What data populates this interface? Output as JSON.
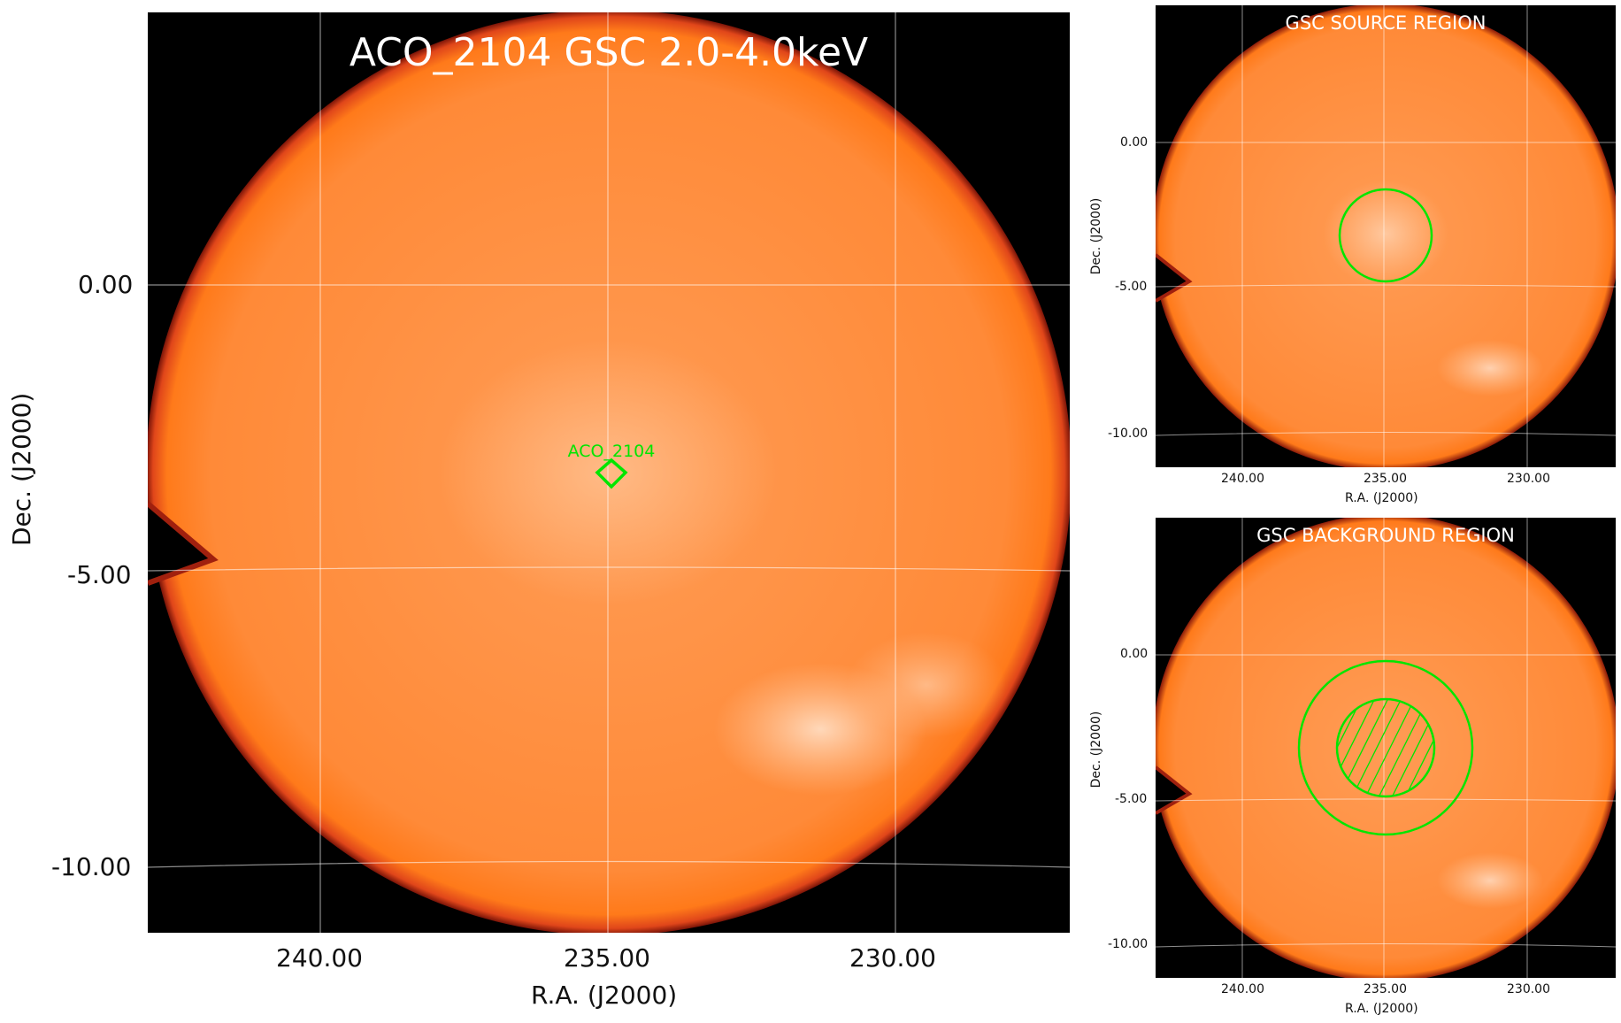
{
  "colors": {
    "background": "#000000",
    "disk_outer": "#ff7a1a",
    "disk_inner": "#ff9a52",
    "edge_glow": "#c4281a",
    "bright_patch": "#ffd1ad",
    "grid": "#ffffff",
    "region": "#00e600",
    "text": "#111111"
  },
  "main_panel": {
    "title": "ACO_2104 GSC 2.0-4.0keV",
    "source_label": "ACO_2104",
    "x_ticks": [
      "240.00",
      "235.00",
      "230.00"
    ],
    "y_ticks": [
      "0.00",
      "-5.00",
      "-10.00"
    ],
    "xlabel": "R.A. (J2000)",
    "ylabel": "Dec. (J2000)"
  },
  "source_panel": {
    "title": "GSC SOURCE REGION",
    "x_ticks": [
      "240.00",
      "235.00",
      "230.00"
    ],
    "y_ticks": [
      "0.00",
      "-5.00",
      "-10.00"
    ],
    "xlabel": "R.A. (J2000)",
    "ylabel": "Dec. (J2000)"
  },
  "background_panel": {
    "title": "GSC BACKGROUND REGION",
    "x_ticks": [
      "240.00",
      "235.00",
      "230.00"
    ],
    "y_ticks": [
      "0.00",
      "-5.00",
      "-10.00"
    ],
    "xlabel": "R.A. (J2000)",
    "ylabel": "Dec. (J2000)"
  }
}
